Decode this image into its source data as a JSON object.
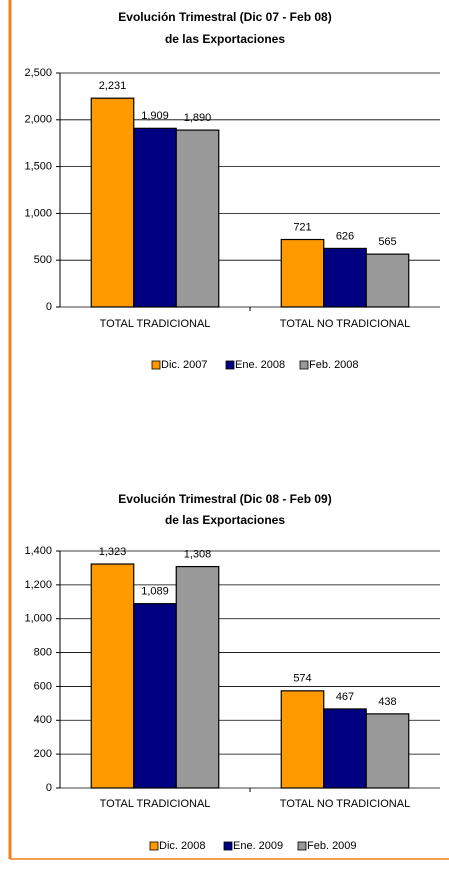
{
  "chart_data": [
    {
      "type": "bar",
      "title": "Evolución Trimestral  (Dic 07 - Feb 08)",
      "subtitle": "de las Exportaciones",
      "categories": [
        "TOTAL TRADICIONAL",
        "TOTAL NO TRADICIONAL"
      ],
      "series": [
        {
          "name": "Dic. 2007",
          "color": "#FF9900",
          "values": [
            2231,
            721
          ],
          "value_labels": [
            "2,231",
            "721"
          ]
        },
        {
          "name": "Ene. 2008",
          "color": "#000080",
          "values": [
            1909,
            626
          ],
          "value_labels": [
            "1,909",
            "626"
          ]
        },
        {
          "name": "Feb. 2008",
          "color": "#999999",
          "values": [
            1890,
            565
          ],
          "value_labels": [
            "1,890",
            "565"
          ]
        }
      ],
      "ylim": [
        0,
        2500
      ],
      "yticks": [
        0,
        {
          "value": 500,
          "label": "500"
        },
        {
          "value": 1000,
          "label": "1,000"
        },
        {
          "value": 1500,
          "label": "1,500"
        },
        {
          "value": 2000,
          "label": "2,000"
        },
        {
          "value": 2500,
          "label": "2,500"
        }
      ],
      "grid": true,
      "legend": "bottom"
    },
    {
      "type": "bar",
      "title": "Evolución Trimestral  (Dic 08 - Feb 09)",
      "subtitle": "de las Exportaciones",
      "categories": [
        "TOTAL TRADICIONAL",
        "TOTAL NO TRADICIONAL"
      ],
      "series": [
        {
          "name": "Dic. 2008",
          "color": "#FF9900",
          "values": [
            1323,
            574
          ],
          "value_labels": [
            "1,323",
            "574"
          ]
        },
        {
          "name": "Ene. 2009",
          "color": "#000080",
          "values": [
            1089,
            467
          ],
          "value_labels": [
            "1,089",
            "467"
          ]
        },
        {
          "name": "Feb. 2009",
          "color": "#999999",
          "values": [
            1308,
            438
          ],
          "value_labels": [
            "1,308",
            "438"
          ]
        }
      ],
      "ylim": [
        0,
        1400
      ],
      "yticks": [
        0,
        200,
        400,
        600,
        800,
        {
          "value": 1000,
          "label": "1,000"
        },
        {
          "value": 1200,
          "label": "1,200"
        },
        {
          "value": 1400,
          "label": "1,400"
        }
      ],
      "grid": true,
      "legend": "bottom"
    }
  ]
}
